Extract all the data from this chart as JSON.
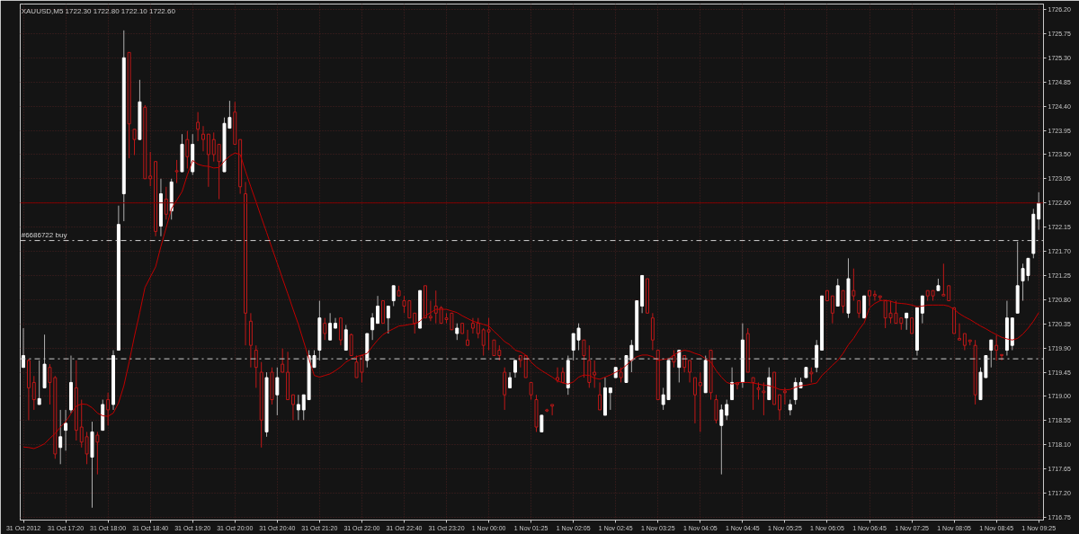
{
  "chart_data": {
    "type": "candlestick",
    "title": "XAUUSD,M5  1722.30 1722.80 1722.10 1722.60",
    "categories": [
      "31 Oct 2012",
      null,
      null,
      null,
      null,
      null,
      null,
      null,
      "31 Oct 17:20",
      null,
      null,
      null,
      null,
      null,
      null,
      null,
      "31 Oct 18:00",
      null,
      null,
      null,
      null,
      null,
      null,
      null,
      "31 Oct 18:40",
      null,
      null,
      null,
      null,
      null,
      null,
      null,
      "31 Oct 19:20",
      null,
      null,
      null,
      null,
      null,
      null,
      null,
      "31 Oct 20:00",
      null,
      null,
      null,
      null,
      null,
      null,
      null,
      "31 Oct 20:40",
      null,
      null,
      null,
      null,
      null,
      null,
      null,
      "31 Oct 21:20",
      null,
      null,
      null,
      null,
      null,
      null,
      null,
      "31 Oct 22:00",
      null,
      null,
      null,
      null,
      null,
      null,
      null,
      "31 Oct 22:40",
      null,
      null,
      null,
      null,
      null,
      null,
      null,
      "31 Oct 23:20",
      null,
      null,
      null,
      null,
      null,
      null,
      null,
      "1 Nov 00:00",
      null,
      null,
      null,
      null,
      null,
      null,
      null,
      "1 Nov 01:25",
      null,
      null,
      null,
      null,
      null,
      null,
      null,
      "1 Nov 02:05",
      null,
      null,
      null,
      null,
      null,
      null,
      null,
      "1 Nov 02:45",
      null,
      null,
      null,
      null,
      null,
      null,
      null,
      "1 Nov 03:25",
      null,
      null,
      null,
      null,
      null,
      null,
      null,
      "1 Nov 04:05",
      null,
      null,
      null,
      null,
      null,
      null,
      null,
      "1 Nov 04:45",
      null,
      null,
      null,
      null,
      null,
      null,
      null,
      "1 Nov 05:25",
      null,
      null,
      null,
      null,
      null,
      null,
      null,
      "1 Nov 06:05",
      null,
      null,
      null,
      null,
      null,
      null,
      null,
      "1 Nov 06:45",
      null,
      null,
      null,
      null,
      null,
      null,
      null,
      "1 Nov 07:25",
      null,
      null,
      null,
      null,
      null,
      null,
      null,
      "1 Nov 08:05",
      null,
      null,
      null,
      null,
      null,
      null,
      null,
      "1 Nov 08:45",
      null,
      null,
      null,
      null,
      null,
      null,
      null,
      "1 Nov 09:25"
    ],
    "ohlc": [
      [
        1719.54,
        1720.27,
        1719.54,
        1719.76
      ],
      [
        1719.67,
        1719.7,
        1718.56,
        1719.16
      ],
      [
        1719.26,
        1719.38,
        1718.75,
        1718.94
      ],
      [
        1718.85,
        1719.67,
        1718.85,
        1718.96
      ],
      [
        1719.16,
        1720.15,
        1719.16,
        1719.6
      ],
      [
        1719.54,
        1719.6,
        1718.85,
        1719.26
      ],
      [
        1719.35,
        1719.38,
        1717.84,
        1717.93
      ],
      [
        1718.05,
        1718.75,
        1717.74,
        1718.25
      ],
      [
        1718.37,
        1718.75,
        1717.99,
        1718.5
      ],
      [
        1718.75,
        1719.76,
        1718.69,
        1719.26
      ],
      [
        1719.16,
        1719.67,
        1718.18,
        1718.37
      ],
      [
        1718.43,
        1718.94,
        1718.05,
        1718.15
      ],
      [
        1718.25,
        1718.34,
        1717.74,
        1717.93
      ],
      [
        1717.87,
        1718.53,
        1716.93,
        1718.34
      ],
      [
        1718.28,
        1718.34,
        1717.55,
        1718.15
      ],
      [
        1718.37,
        1718.94,
        1718.37,
        1718.85
      ],
      [
        1718.94,
        1719.07,
        1718.46,
        1718.75
      ],
      [
        1718.85,
        1719.86,
        1718.75,
        1719.76
      ],
      [
        1719.86,
        1722.55,
        1719.86,
        1722.2
      ],
      [
        1722.77,
        1725.81,
        1722.26,
        1725.3
      ],
      [
        1725.4,
        1725.4,
        1723.43,
        1724.07
      ],
      [
        1723.97,
        1723.97,
        1723.49,
        1723.78
      ],
      [
        1723.78,
        1724.89,
        1723.78,
        1724.48
      ],
      [
        1724.38,
        1724.42,
        1723.05,
        1723.05
      ],
      [
        1723.1,
        1723.55,
        1722.91,
        1723.05
      ],
      [
        1723.37,
        1723.37,
        1721.98,
        1722.07
      ],
      [
        1722.17,
        1723.05,
        1721.98,
        1722.77
      ],
      [
        1722.67,
        1722.9,
        1722.29,
        1722.39
      ],
      [
        1722.45,
        1723.05,
        1722.29,
        1722.99
      ],
      [
        1723.2,
        1723.4,
        1722.97,
        1723.18
      ],
      [
        1723.18,
        1723.88,
        1723.18,
        1723.69
      ],
      [
        1723.78,
        1723.94,
        1723.24,
        1723.46
      ],
      [
        1723.18,
        1723.88,
        1723.12,
        1723.69
      ],
      [
        1724.1,
        1724.29,
        1723.75,
        1723.97
      ],
      [
        1723.88,
        1724.03,
        1723.56,
        1723.78
      ],
      [
        1723.88,
        1723.88,
        1722.9,
        1723.5
      ],
      [
        1723.78,
        1723.91,
        1723.37,
        1723.5
      ],
      [
        1723.69,
        1723.69,
        1722.67,
        1723.37
      ],
      [
        1723.18,
        1724.19,
        1723.18,
        1724.08
      ],
      [
        1723.99,
        1724.5,
        1723.99,
        1724.19
      ],
      [
        1724.29,
        1724.48,
        1723.69,
        1723.69
      ],
      [
        1723.78,
        1723.78,
        1722.77,
        1722.9
      ],
      [
        1722.77,
        1722.99,
        1719.95,
        1720.55
      ],
      [
        1720.4,
        1720.55,
        1719.54,
        1719.95
      ],
      [
        1719.86,
        1719.95,
        1719.16,
        1719.54
      ],
      [
        1719.45,
        1719.64,
        1718.05,
        1718.56
      ],
      [
        1718.34,
        1719.45,
        1718.25,
        1719.35
      ],
      [
        1719.45,
        1719.54,
        1718.85,
        1718.94
      ],
      [
        1719.03,
        1719.54,
        1718.65,
        1719.35
      ],
      [
        1719.6,
        1719.89,
        1719.45,
        1719.45
      ],
      [
        1719.45,
        1719.83,
        1718.94,
        1718.94
      ],
      [
        1719.03,
        1719.03,
        1718.56,
        1718.85
      ],
      [
        1718.75,
        1719.03,
        1718.56,
        1718.85
      ],
      [
        1718.75,
        1719.03,
        1718.56,
        1719.03
      ],
      [
        1718.94,
        1719.86,
        1718.94,
        1719.76
      ],
      [
        1719.54,
        1719.86,
        1719.54,
        1719.76
      ],
      [
        1719.86,
        1720.78,
        1719.67,
        1720.46
      ],
      [
        1720.36,
        1720.46,
        1720.05,
        1720.17
      ],
      [
        1720.05,
        1720.55,
        1720.05,
        1720.36
      ],
      [
        1720.27,
        1720.46,
        1720.27,
        1720.36
      ],
      [
        1720.46,
        1720.46,
        1719.95,
        1720.05
      ],
      [
        1719.86,
        1720.33,
        1719.86,
        1720.24
      ],
      [
        1720.15,
        1720.17,
        1719.76,
        1719.76
      ],
      [
        1719.64,
        1719.76,
        1719.35,
        1719.35
      ],
      [
        1719.76,
        1719.76,
        1719.26,
        1719.45
      ],
      [
        1719.67,
        1720.17,
        1719.54,
        1720.17
      ],
      [
        1720.24,
        1720.55,
        1720.05,
        1720.46
      ],
      [
        1720.36,
        1720.87,
        1720.36,
        1720.68
      ],
      [
        1720.78,
        1720.78,
        1720.36,
        1720.36
      ],
      [
        1720.46,
        1720.68,
        1720.17,
        1720.68
      ],
      [
        1720.78,
        1721.06,
        1720.68,
        1721.06
      ],
      [
        1720.97,
        1721.06,
        1720.87,
        1720.87
      ],
      [
        1720.78,
        1720.87,
        1720.55,
        1720.68
      ],
      [
        1720.78,
        1720.78,
        1720.46,
        1720.46
      ],
      [
        1720.55,
        1720.55,
        1720.17,
        1720.36
      ],
      [
        1720.27,
        1720.97,
        1720.27,
        1720.97
      ],
      [
        1721.06,
        1721.06,
        1720.46,
        1720.46
      ],
      [
        1720.49,
        1720.78,
        1720.4,
        1720.46
      ],
      [
        1720.68,
        1720.97,
        1720.36,
        1720.55
      ],
      [
        1720.65,
        1720.68,
        1720.36,
        1720.36
      ],
      [
        1720.46,
        1720.55,
        1720.36,
        1720.43
      ],
      [
        1720.55,
        1720.55,
        1720.24,
        1720.24
      ],
      [
        1720.17,
        1720.36,
        1720.05,
        1720.27
      ],
      [
        1720.36,
        1720.36,
        1720.17,
        1720.17
      ],
      [
        1720.05,
        1720.24,
        1719.95,
        1719.95
      ],
      [
        1720.36,
        1720.46,
        1720.17,
        1720.27
      ],
      [
        1720.36,
        1720.46,
        1720.08,
        1720.17
      ],
      [
        1720.24,
        1720.27,
        1719.76,
        1719.95
      ],
      [
        1720.24,
        1720.46,
        1719.86,
        1720.2
      ],
      [
        1720.05,
        1720.05,
        1719.76,
        1719.76
      ],
      [
        1719.86,
        1719.95,
        1719.67,
        1719.76
      ],
      [
        1719.45,
        1719.54,
        1718.75,
        1719.03
      ],
      [
        1719.16,
        1719.45,
        1719.16,
        1719.35
      ],
      [
        1719.45,
        1719.67,
        1719.35,
        1719.67
      ],
      [
        1719.76,
        1719.76,
        1719.54,
        1719.67
      ],
      [
        1719.76,
        1719.76,
        1719.35,
        1719.35
      ],
      [
        1719.26,
        1719.26,
        1718.94,
        1719.03
      ],
      [
        1718.94,
        1719.03,
        1718.34,
        1718.43
      ],
      [
        1718.34,
        1718.65,
        1718.34,
        1718.65
      ],
      [
        1718.75,
        1718.77,
        1718.71,
        1718.73
      ],
      [
        1718.85,
        1718.85,
        1718.65,
        1718.82
      ],
      [
        1719.35,
        1719.54,
        1719.26,
        1719.3
      ],
      [
        1719.45,
        1719.54,
        1719.26,
        1719.26
      ],
      [
        1719.16,
        1719.76,
        1719.03,
        1719.67
      ],
      [
        1719.86,
        1720.17,
        1719.67,
        1720.17
      ],
      [
        1720.05,
        1720.36,
        1719.86,
        1720.27
      ],
      [
        1720.05,
        1720.05,
        1719.35,
        1719.76
      ],
      [
        1719.67,
        1719.95,
        1719.16,
        1719.26
      ],
      [
        1719.45,
        1719.67,
        1719.16,
        1719.4
      ],
      [
        1719.03,
        1719.26,
        1718.75,
        1718.75
      ],
      [
        1718.65,
        1719.35,
        1718.65,
        1719.16
      ],
      [
        1719.07,
        1719.16,
        1718.75,
        1719.16
      ],
      [
        1719.35,
        1719.54,
        1719.35,
        1719.54
      ],
      [
        1719.45,
        1719.54,
        1719.26,
        1719.35
      ],
      [
        1719.26,
        1719.76,
        1719.26,
        1719.76
      ],
      [
        1719.67,
        1720.05,
        1719.45,
        1719.95
      ],
      [
        1719.86,
        1720.78,
        1719.86,
        1720.78
      ],
      [
        1720.68,
        1721.25,
        1720.55,
        1721.25
      ],
      [
        1721.19,
        1721.19,
        1720.55,
        1720.55
      ],
      [
        1720.46,
        1720.55,
        1719.86,
        1720.05
      ],
      [
        1719.86,
        1719.86,
        1718.94,
        1718.94
      ],
      [
        1718.85,
        1719.16,
        1718.75,
        1719.03
      ],
      [
        1718.94,
        1719.67,
        1718.94,
        1719.67
      ],
      [
        1719.76,
        1719.86,
        1719.54,
        1719.64
      ],
      [
        1719.54,
        1719.86,
        1719.26,
        1719.86
      ],
      [
        1719.76,
        1719.76,
        1719.45,
        1719.54
      ],
      [
        1719.67,
        1719.67,
        1719.26,
        1719.45
      ],
      [
        1719.35,
        1719.35,
        1718.5,
        1719.03
      ],
      [
        1719.26,
        1719.45,
        1718.34,
        1719.2
      ],
      [
        1719.07,
        1719.76,
        1719.07,
        1719.67
      ],
      [
        1719.86,
        1719.86,
        1718.94,
        1719.07
      ],
      [
        1718.94,
        1719.03,
        1718.5,
        1718.56
      ],
      [
        1718.46,
        1718.85,
        1717.55,
        1718.75
      ],
      [
        1718.65,
        1718.94,
        1718.56,
        1718.85
      ],
      [
        1718.94,
        1719.54,
        1718.94,
        1719.26
      ],
      [
        1719.25,
        1719.26,
        1719.13,
        1719.22
      ],
      [
        1719.26,
        1720.36,
        1719.16,
        1720.05
      ],
      [
        1720.17,
        1720.27,
        1719.45,
        1719.45
      ],
      [
        1719.35,
        1719.35,
        1718.75,
        1719.26
      ],
      [
        1719.16,
        1719.26,
        1718.94,
        1719.13
      ],
      [
        1719.1,
        1719.26,
        1718.65,
        1719.07
      ],
      [
        1718.94,
        1719.54,
        1718.94,
        1719.35
      ],
      [
        1719.45,
        1719.45,
        1718.85,
        1718.85
      ],
      [
        1719.03,
        1719.03,
        1718.56,
        1718.75
      ],
      [
        1719.1,
        1719.16,
        1718.85,
        1719.07
      ],
      [
        1718.75,
        1718.94,
        1718.65,
        1718.85
      ],
      [
        1718.94,
        1719.35,
        1718.85,
        1719.26
      ],
      [
        1719.16,
        1719.35,
        1719.16,
        1719.26
      ],
      [
        1719.35,
        1719.54,
        1719.35,
        1719.54
      ],
      [
        1719.45,
        1719.54,
        1719.26,
        1719.42
      ],
      [
        1719.54,
        1720.05,
        1719.45,
        1719.95
      ],
      [
        1719.86,
        1720.87,
        1719.86,
        1720.87
      ],
      [
        1720.97,
        1720.97,
        1720.78,
        1720.78
      ],
      [
        1720.87,
        1720.87,
        1720.36,
        1720.55
      ],
      [
        1720.68,
        1721.19,
        1720.68,
        1721.06
      ],
      [
        1720.97,
        1720.97,
        1720.55,
        1720.68
      ],
      [
        1720.55,
        1721.57,
        1720.46,
        1721.19
      ],
      [
        1720.97,
        1721.38,
        1720.78,
        1720.87
      ],
      [
        1720.78,
        1720.78,
        1720.46,
        1720.55
      ],
      [
        1720.46,
        1720.87,
        1720.46,
        1720.87
      ],
      [
        1720.97,
        1720.97,
        1720.68,
        1720.87
      ],
      [
        1720.9,
        1720.97,
        1720.78,
        1720.87
      ],
      [
        1720.87,
        1720.87,
        1720.78,
        1720.84
      ],
      [
        1720.78,
        1720.78,
        1720.27,
        1720.46
      ],
      [
        1720.55,
        1720.78,
        1720.36,
        1720.46
      ],
      [
        1720.55,
        1720.78,
        1720.36,
        1720.36
      ],
      [
        1720.46,
        1720.46,
        1720.24,
        1720.36
      ],
      [
        1720.46,
        1720.55,
        1720.24,
        1720.55
      ],
      [
        1720.46,
        1720.46,
        1720.17,
        1720.17
      ],
      [
        1719.86,
        1720.65,
        1719.76,
        1720.65
      ],
      [
        1720.55,
        1720.87,
        1720.36,
        1720.87
      ],
      [
        1720.97,
        1720.97,
        1720.78,
        1720.87
      ],
      [
        1720.97,
        1720.97,
        1720.78,
        1720.87
      ],
      [
        1720.97,
        1721.19,
        1720.97,
        1721.06
      ],
      [
        1720.9,
        1721.47,
        1720.87,
        1720.87
      ],
      [
        1721.06,
        1721.06,
        1720.78,
        1720.78
      ],
      [
        1720.65,
        1720.65,
        1720.17,
        1720.17
      ],
      [
        1720.08,
        1720.36,
        1720.05,
        1720.05
      ],
      [
        1720.17,
        1720.17,
        1719.86,
        1719.95
      ],
      [
        1720.05,
        1720.05,
        1719.95,
        1720.02
      ],
      [
        1719.95,
        1720.05,
        1718.85,
        1719.03
      ],
      [
        1718.94,
        1719.54,
        1718.94,
        1719.45
      ],
      [
        1719.35,
        1719.76,
        1719.35,
        1719.76
      ],
      [
        1719.86,
        1720.05,
        1719.54,
        1720.05
      ],
      [
        1719.95,
        1720.14,
        1719.67,
        1719.86
      ],
      [
        1719.78,
        1719.78,
        1719.67,
        1719.76
      ],
      [
        1719.86,
        1720.78,
        1719.76,
        1720.46
      ],
      [
        1719.95,
        1720.46,
        1719.86,
        1720.46
      ],
      [
        1720.55,
        1721.88,
        1720.55,
        1721.06
      ],
      [
        1721.15,
        1721.47,
        1720.78,
        1721.38
      ],
      [
        1721.25,
        1721.57,
        1721.15,
        1721.57
      ],
      [
        1721.66,
        1722.49,
        1721.57,
        1722.39
      ],
      [
        1722.3,
        1722.8,
        1722.1,
        1722.6
      ]
    ],
    "series": [
      {
        "type": "line",
        "color": "#c00000",
        "values": [
          1718.06,
          1718.05,
          1718.03,
          1718.07,
          1718.12,
          1718.22,
          1718.31,
          1718.43,
          1718.53,
          1718.68,
          1718.82,
          1718.86,
          1718.85,
          1718.79,
          1718.69,
          1718.64,
          1718.63,
          1718.69,
          1718.88,
          1719.2,
          1719.64,
          1720.12,
          1720.56,
          1721.03,
          1721.22,
          1721.41,
          1721.79,
          1722.14,
          1722.49,
          1722.65,
          1722.81,
          1723.12,
          1723.39,
          1723.32,
          1723.29,
          1723.28,
          1723.25,
          1723.26,
          1723.38,
          1723.47,
          1723.53,
          1723.5,
          1723.19,
          1722.9,
          1722.62,
          1722.33,
          1722.05,
          1721.76,
          1721.48,
          1721.19,
          1720.91,
          1720.62,
          1720.34,
          1720.02,
          1719.7,
          1719.39,
          1719.36,
          1719.39,
          1719.42,
          1719.48,
          1719.55,
          1719.64,
          1719.7,
          1719.74,
          1719.77,
          1719.8,
          1719.93,
          1720.05,
          1720.15,
          1720.21,
          1720.26,
          1720.31,
          1720.32,
          1720.34,
          1720.35,
          1720.4,
          1720.5,
          1720.56,
          1720.62,
          1720.62,
          1720.62,
          1720.59,
          1720.56,
          1720.5,
          1720.45,
          1720.4,
          1720.37,
          1720.34,
          1720.31,
          1720.21,
          1720.12,
          1720.02,
          1719.96,
          1719.86,
          1719.83,
          1719.77,
          1719.64,
          1719.55,
          1719.48,
          1719.42,
          1719.36,
          1719.29,
          1719.25,
          1719.23,
          1719.27,
          1719.36,
          1719.4,
          1719.39,
          1719.34,
          1719.32,
          1719.36,
          1719.4,
          1719.45,
          1719.5,
          1719.58,
          1719.67,
          1719.74,
          1719.77,
          1719.77,
          1719.74,
          1719.67,
          1719.69,
          1719.7,
          1719.77,
          1719.83,
          1719.86,
          1719.84,
          1719.8,
          1719.77,
          1719.7,
          1719.64,
          1719.48,
          1719.36,
          1719.26,
          1719.23,
          1719.26,
          1719.26,
          1719.26,
          1719.25,
          1719.23,
          1719.21,
          1719.2,
          1719.17,
          1719.13,
          1719.12,
          1719.13,
          1719.17,
          1719.2,
          1719.21,
          1719.23,
          1719.25,
          1719.39,
          1719.48,
          1719.58,
          1719.67,
          1719.8,
          1719.96,
          1720.08,
          1720.24,
          1720.37,
          1720.65,
          1720.73,
          1720.78,
          1720.79,
          1720.77,
          1720.74,
          1720.73,
          1720.72,
          1720.7,
          1720.67,
          1720.68,
          1720.7,
          1720.7,
          1720.7,
          1720.7,
          1720.68,
          1720.62,
          1720.54,
          1720.48,
          1720.43,
          1720.37,
          1720.31,
          1720.26,
          1720.2,
          1720.15,
          1720.1,
          1720.07,
          1720.05,
          1720.08,
          1720.16,
          1720.27,
          1720.4,
          1720.56
        ]
      }
    ],
    "ylim": [
      1716.7,
      1726.3
    ],
    "yticks": [
      {
        "value": 1716.75,
        "label": "1716.75"
      },
      {
        "value": 1717.2,
        "label": "1717.20"
      },
      {
        "value": 1717.65,
        "label": "1717.65"
      },
      {
        "value": 1718.1,
        "label": "1718.10"
      },
      {
        "value": 1718.55,
        "label": "1718.55"
      },
      {
        "value": 1719.0,
        "label": "1719.00"
      },
      {
        "value": 1719.45,
        "label": "1719.45"
      },
      {
        "value": 1719.9,
        "label": "1719.90"
      },
      {
        "value": 1720.35,
        "label": "1720.35"
      },
      {
        "value": 1720.8,
        "label": "1720.80"
      },
      {
        "value": 1721.25,
        "label": "1721.25"
      },
      {
        "value": 1721.7,
        "label": "1721.70"
      },
      {
        "value": 1722.15,
        "label": "1722.15"
      },
      {
        "value": 1722.6,
        "label": "1722.60"
      },
      {
        "value": 1723.05,
        "label": "1723.05"
      },
      {
        "value": 1723.5,
        "label": "1723.50"
      },
      {
        "value": 1723.95,
        "label": "1723.95"
      },
      {
        "value": 1724.4,
        "label": "1724.40"
      },
      {
        "value": 1724.85,
        "label": "1724.85"
      },
      {
        "value": 1725.3,
        "label": "1725.30"
      },
      {
        "value": 1725.75,
        "label": "1725.75"
      },
      {
        "value": 1726.2,
        "label": "1726.20"
      }
    ],
    "ref_lines": [
      {
        "axis": "y",
        "value": 1721.9,
        "label": "#6686722 buy",
        "color": "#d0d0d0",
        "line_style": "dashdot"
      },
      {
        "axis": "y",
        "value": 1719.7,
        "label": null,
        "color": "#d0d0d0",
        "line_style": "dashdot"
      },
      {
        "axis": "y",
        "value": 1722.6,
        "label": null,
        "color": "#800000",
        "line_style": "solid"
      }
    ],
    "grid": true
  }
}
